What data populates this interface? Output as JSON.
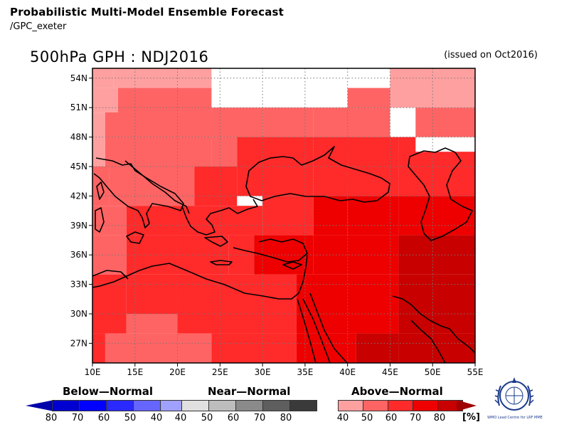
{
  "header": {
    "title": "Probabilistic Multi-Model Ensemble Forecast",
    "subtitle": "/GPC_exeter"
  },
  "map": {
    "title": "500hPa GPH : NDJ2016",
    "issued": "(issued on Oct2016)",
    "lon_labels": [
      "10E",
      "15E",
      "20E",
      "25E",
      "30E",
      "35E",
      "40E",
      "45E",
      "50E",
      "55E"
    ],
    "lat_labels": [
      "54N",
      "51N",
      "48N",
      "45N",
      "42N",
      "39N",
      "36N",
      "33N",
      "30N",
      "27N"
    ],
    "lon_range": [
      10,
      55
    ],
    "lat_range": [
      25,
      55
    ],
    "grid": true
  },
  "legend": {
    "below": {
      "title": "Below—Normal",
      "labels": [
        "80",
        "70",
        "60",
        "50",
        "40"
      ],
      "colors": [
        "#0000d0",
        "#0000ff",
        "#2a2aff",
        "#6666ff",
        "#a0a0ff"
      ]
    },
    "near": {
      "title": "Near—Normal",
      "labels": [
        "40",
        "50",
        "60",
        "70",
        "80"
      ],
      "colors": [
        "#e0e0e0",
        "#bdbdbd",
        "#8a8a8a",
        "#5e5e5e",
        "#3a3a3a"
      ]
    },
    "above": {
      "title": "Above—Normal",
      "labels": [
        "40",
        "50",
        "60",
        "70",
        "80"
      ],
      "colors": [
        "#ffa0a0",
        "#ff6464",
        "#ff2a2a",
        "#ee0000",
        "#c80000"
      ],
      "unit": "[%]"
    },
    "logo_text": "WMO Lead Centre for LRF MME"
  }
}
